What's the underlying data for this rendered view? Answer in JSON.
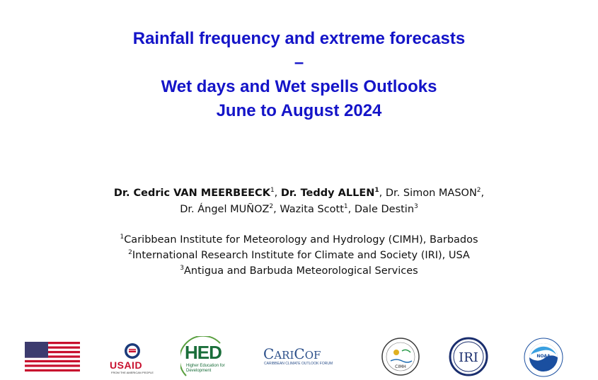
{
  "title": {
    "line1": "Rainfall frequency and extreme forecasts",
    "line2": "–",
    "line3": "Wet days and Wet spells Outlooks",
    "line4": "June to August 2024"
  },
  "authors": [
    {
      "name": "Dr. Cedric VAN MEERBEECK",
      "sup": "1",
      "bold": true
    },
    {
      "name": "Dr. Teddy ALLEN",
      "sup": "1",
      "bold": true
    },
    {
      "name": "Dr. Simon MASON",
      "sup": "2",
      "bold": false
    },
    {
      "name": "Dr. Ángel MUÑOZ",
      "sup": "2",
      "bold": false
    },
    {
      "name": "Wazita Scott",
      "sup": "1",
      "bold": false
    },
    {
      "name": "Dale Destin",
      "sup": "3",
      "bold": false
    }
  ],
  "affiliations": [
    {
      "sup": "1",
      "text": "Caribbean Institute for Meteorology and Hydrology (CIMH), Barbados"
    },
    {
      "sup": "2",
      "text": "International Research Institute for Climate and Society (IRI), USA"
    },
    {
      "sup": "3",
      "text": "Antigua and Barbuda Meteorological Services"
    }
  ],
  "logos": {
    "usaid": {
      "label": "USAID",
      "tagline": "FROM THE AMERICAN PEOPLE"
    },
    "hed": {
      "label": "HED",
      "tagline": "Higher Education for Development"
    },
    "caricof": {
      "label_big": "C",
      "label_a": "ARI",
      "label_c": "C",
      "label_of": "OF",
      "tagline": "CARIBBEAN CLIMATE OUTLOOK FORUM"
    },
    "cimh": {
      "label": "CIMH"
    },
    "iri": {
      "label": "IRI"
    },
    "noaa": {
      "label": "NOAA"
    }
  },
  "colors": {
    "title": "#1414c8",
    "usaid_red": "#c8102e",
    "hed_green": "#1a6e3a",
    "caricof_blue": "#2b4f8a",
    "noaa_blue": "#1a4fa0"
  }
}
